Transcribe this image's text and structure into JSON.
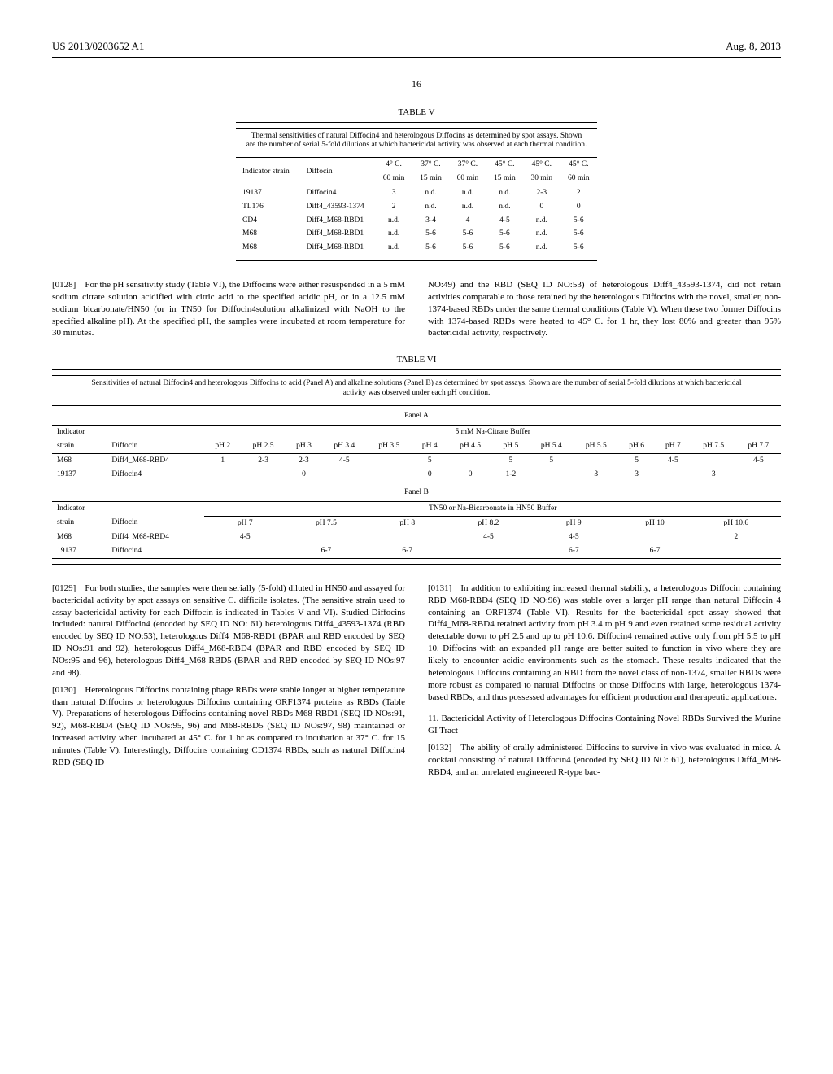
{
  "header": {
    "pub_no": "US 2013/0203652 A1",
    "date": "Aug. 8, 2013"
  },
  "page_number": "16",
  "table5": {
    "title": "TABLE V",
    "caption": "Thermal sensitivities of natural Diffocin4 and heterologous Diffocins as determined by spot assays. Shown are the number of serial 5-fold dilutions at which bactericidal activity was observed at each thermal condition.",
    "col_group_1": "Indicator strain",
    "col_group_2": "Diffocin",
    "cond_headers": [
      "4° C.",
      "37° C.",
      "37° C.",
      "45° C.",
      "45° C.",
      "45° C."
    ],
    "time_headers": [
      "60 min",
      "15 min",
      "60 min",
      "15 min",
      "30 min",
      "60 min"
    ],
    "rows": [
      {
        "strain": "19137",
        "diffocin": "Diffocin4",
        "vals": [
          "3",
          "n.d.",
          "n.d.",
          "n.d.",
          "2-3",
          "2"
        ]
      },
      {
        "strain": "TL176",
        "diffocin": "Diff4_43593-1374",
        "vals": [
          "2",
          "n.d.",
          "n.d.",
          "n.d.",
          "0",
          "0"
        ]
      },
      {
        "strain": "CD4",
        "diffocin": "Diff4_M68-RBD1",
        "vals": [
          "n.d.",
          "3-4",
          "4",
          "4-5",
          "n.d.",
          "5-6"
        ]
      },
      {
        "strain": "M68",
        "diffocin": "Diff4_M68-RBD1",
        "vals": [
          "n.d.",
          "5-6",
          "5-6",
          "5-6",
          "n.d.",
          "5-6"
        ]
      },
      {
        "strain": "M68",
        "diffocin": "Diff4_M68-RBD1",
        "vals": [
          "n.d.",
          "5-6",
          "5-6",
          "5-6",
          "n.d.",
          "5-6"
        ]
      }
    ]
  },
  "para128": "[0128] For the pH sensitivity study (Table VI), the Diffocins were either resuspended in a 5 mM sodium citrate solution acidified with citric acid to the specified acidic pH, or in a 12.5 mM sodium bicarbonate/HN50 (or in TN50 for Diffocin4solution alkalinized with NaOH to the specified alkaline pH). At the specified pH, the samples were incubated at room temperature for 30 minutes.",
  "col2_top": "NO:49) and the RBD (SEQ ID NO:53) of heterologous Diff4_43593-1374, did not retain activities comparable to those retained by the heterologous Diffocins with the novel, smaller, non-1374-based RBDs under the same thermal conditions (Table V). When these two former Diffocins with 1374-based RBDs were heated to 45° C. for 1 hr, they lost 80% and greater than 95% bactericidal activity, respectively.",
  "table6": {
    "title": "TABLE VI",
    "caption": "Sensitivities of natural Diffocin4 and heterologous Diffocins to acid (Panel A) and alkaline solutions (Panel B) as determined by spot assays. Shown are the number of serial 5-fold dilutions at which bactericidal activity was observed under each pH condition.",
    "panelA": {
      "label": "Panel A",
      "buffer": "5 mM Na-Citrate Buffer",
      "col1": "Indicator strain",
      "col2": "Diffocin",
      "ph_headers": [
        "pH 2",
        "pH 2.5",
        "pH 3",
        "pH 3.4",
        "pH 3.5",
        "pH 4",
        "pH 4.5",
        "pH 5",
        "pH 5.4",
        "pH 5.5",
        "pH 6",
        "pH 7",
        "pH 7.5",
        "pH 7.7"
      ],
      "rows": [
        {
          "strain": "M68",
          "diffocin": "Diff4_M68-RBD4",
          "vals": [
            "1",
            "2-3",
            "2-3",
            "4-5",
            "",
            "5",
            "",
            "5",
            "5",
            "",
            "5",
            "4-5",
            "",
            "4-5"
          ]
        },
        {
          "strain": "19137",
          "diffocin": "Diffocin4",
          "vals": [
            "",
            "",
            "0",
            "",
            "",
            "0",
            "0",
            "1-2",
            "",
            "3",
            "3",
            "",
            "3",
            ""
          ]
        }
      ]
    },
    "panelB": {
      "label": "Panel B",
      "buffer": "TN50 or Na-Bicarbonate in HN50 Buffer",
      "col1": "Indicator strain",
      "col2": "Diffocin",
      "ph_headers": [
        "pH 7",
        "pH 7.5",
        "pH 8",
        "pH 8.2",
        "pH 9",
        "pH 10",
        "pH 10.6"
      ],
      "rows": [
        {
          "strain": "M68",
          "diffocin": "Diff4_M68-RBD4",
          "vals": [
            "4-5",
            "",
            "",
            "4-5",
            "4-5",
            "",
            "2"
          ]
        },
        {
          "strain": "19137",
          "diffocin": "Diffocin4",
          "vals": [
            "",
            "6-7",
            "6-7",
            "",
            "6-7",
            "6-7",
            ""
          ]
        }
      ]
    }
  },
  "para129": "[0129] For both studies, the samples were then serially (5-fold) diluted in HN50 and assayed for bactericidal activity by spot assays on sensitive C. difficile isolates. (The sensitive strain used to assay bactericidal activity for each Diffocin is indicated in Tables V and VI). Studied Diffocins included: natural Diffocin4 (encoded by SEQ ID NO: 61) heterologous Diff4_43593-1374 (RBD encoded by SEQ ID NO:53), heterologous Diff4_M68-RBD1 (BPAR and RBD encoded by SEQ ID NOs:91 and 92), heterologous Diff4_M68-RBD4 (BPAR and RBD encoded by SEQ ID NOs:95 and 96), heterologous Diff4_M68-RBD5 (BPAR and RBD encoded by SEQ ID NOs:97 and 98).",
  "para130": "[0130] Heterologous Diffocins containing phage RBDs were stable longer at higher temperature than natural Diffocins or heterologous Diffocins containing ORF1374 proteins as RBDs (Table V). Preparations of heterologous Diffocins containing novel RBDs M68-RBD1 (SEQ ID NOs:91, 92), M68-RBD4 (SEQ ID NOs:95, 96) and M68-RBD5 (SEQ ID NOs:97, 98) maintained or increased activity when incubated at 45° C. for 1 hr as compared to incubation at 37° C. for 15 minutes (Table V). Interestingly, Diffocins containing CD1374 RBDs, such as natural Diffocin4 RBD (SEQ ID",
  "para131": "[0131] In addition to exhibiting increased thermal stability, a heterologous Diffocin containing RBD M68-RBD4 (SEQ ID NO:96) was stable over a larger pH range than natural Diffocin 4 containing an ORF1374 (Table VI). Results for the bactericidal spot assay showed that Diff4_M68-RBD4 retained activity from pH 3.4 to pH 9 and even retained some residual activity detectable down to pH 2.5 and up to pH 10.6. Diffocin4 remained active only from pH 5.5 to pH 10. Diffocins with an expanded pH range are better suited to function in vivo where they are likely to encounter acidic environments such as the stomach. These results indicated that the heterologous Diffocins containing an RBD from the novel class of non-1374, smaller RBDs were more robust as compared to natural Diffocins or those Diffocins with large, heterologous 1374-based RBDs, and thus possessed advantages for efficient production and therapeutic applications.",
  "section11_head": "11. Bactericidal Activity of Heterologous Diffocins Containing Novel RBDs Survived the Murine GI Tract",
  "para132": "[0132] The ability of orally administered Diffocins to survive in vivo was evaluated in mice. A cocktail consisting of natural Diffocin4 (encoded by SEQ ID NO: 61), heterologous Diff4_M68-RBD4, and an unrelated engineered R-type bac-"
}
